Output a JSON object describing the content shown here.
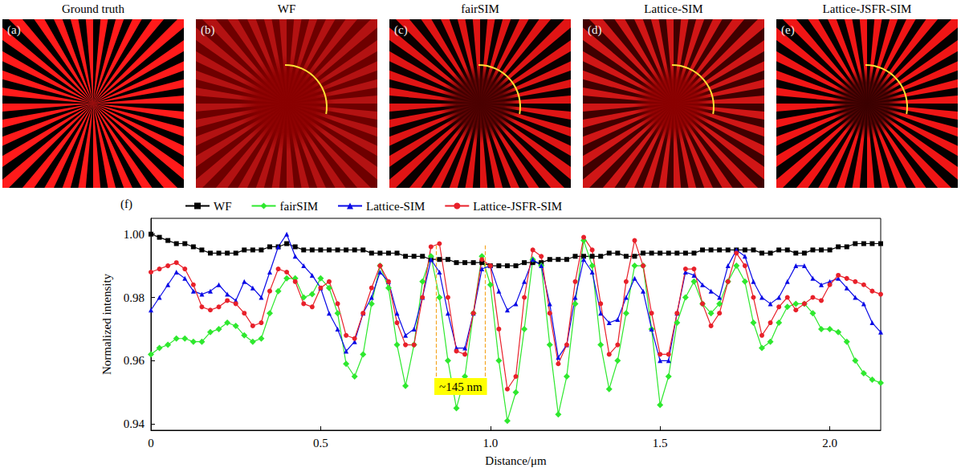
{
  "panels": [
    {
      "letter": "(a)",
      "title": "Ground truth"
    },
    {
      "letter": "(b)",
      "title": "WF"
    },
    {
      "letter": "(c)",
      "title": "fairSIM"
    },
    {
      "letter": "(d)",
      "title": "Lattice-SIM"
    },
    {
      "letter": "(e)",
      "title": "Lattice-JSFR-SIM"
    }
  ],
  "chart_data": {
    "type": "line",
    "panel_label": "(f)",
    "xlabel": "Distance/μm",
    "ylabel": "Normalized intensity",
    "xlim": [
      0,
      2.15
    ],
    "ylim": [
      0.938,
      1.005
    ],
    "xticks": [
      0,
      0.5,
      {
        "value": 1,
        "label": "1.0"
      },
      1.5,
      {
        "value": 2,
        "label": "2.0"
      }
    ],
    "yticks": [
      0.94,
      0.96,
      0.98,
      {
        "value": 1,
        "label": "1.00"
      }
    ],
    "grid": false,
    "legend": "top",
    "annotations": [
      {
        "text": "~145 nm",
        "x": [
          0.84,
          0.985
        ],
        "y": [
          0.955,
          0.997
        ],
        "color": "#f5a623"
      }
    ],
    "x": [
      0,
      0.025,
      0.05,
      0.075,
      0.1,
      0.125,
      0.15,
      0.175,
      0.2,
      0.225,
      0.25,
      0.275,
      0.3,
      0.325,
      0.35,
      0.375,
      0.4,
      0.425,
      0.45,
      0.475,
      0.5,
      0.525,
      0.55,
      0.575,
      0.6,
      0.625,
      0.65,
      0.675,
      0.7,
      0.725,
      0.75,
      0.775,
      0.8,
      0.825,
      0.85,
      0.875,
      0.9,
      0.925,
      0.95,
      0.975,
      1.0,
      1.025,
      1.05,
      1.075,
      1.1,
      1.125,
      1.15,
      1.175,
      1.2,
      1.225,
      1.25,
      1.275,
      1.3,
      1.325,
      1.35,
      1.375,
      1.4,
      1.425,
      1.45,
      1.475,
      1.5,
      1.525,
      1.55,
      1.575,
      1.6,
      1.625,
      1.65,
      1.675,
      1.7,
      1.725,
      1.75,
      1.775,
      1.8,
      1.825,
      1.85,
      1.875,
      1.9,
      1.925,
      1.95,
      1.975,
      2.0,
      2.025,
      2.05,
      2.075,
      2.1,
      2.125,
      2.15
    ],
    "series": [
      {
        "name": "WF",
        "color": "#000000",
        "marker": "square",
        "values": [
          1.0,
          0.999,
          0.998,
          0.997,
          0.997,
          0.996,
          0.995,
          0.994,
          0.994,
          0.994,
          0.994,
          0.995,
          0.995,
          0.995,
          0.996,
          0.996,
          0.997,
          0.996,
          0.995,
          0.995,
          0.995,
          0.995,
          0.995,
          0.995,
          0.995,
          0.995,
          0.994,
          0.994,
          0.994,
          0.994,
          0.993,
          0.993,
          0.993,
          0.992,
          0.992,
          0.992,
          0.991,
          0.991,
          0.991,
          0.991,
          0.99,
          0.99,
          0.99,
          0.99,
          0.991,
          0.991,
          0.991,
          0.992,
          0.992,
          0.992,
          0.993,
          0.993,
          0.993,
          0.993,
          0.994,
          0.994,
          0.993,
          0.993,
          0.994,
          0.994,
          0.994,
          0.994,
          0.994,
          0.994,
          0.994,
          0.995,
          0.995,
          0.995,
          0.995,
          0.995,
          0.995,
          0.995,
          0.994,
          0.994,
          0.995,
          0.995,
          0.994,
          0.994,
          0.995,
          0.995,
          0.995,
          0.996,
          0.996,
          0.997,
          0.997,
          0.997,
          0.997
        ]
      },
      {
        "name": "fairSIM",
        "color": "#2ee82e",
        "marker": "diamond",
        "values": [
          0.962,
          0.964,
          0.965,
          0.967,
          0.967,
          0.966,
          0.966,
          0.969,
          0.97,
          0.972,
          0.971,
          0.968,
          0.966,
          0.967,
          0.975,
          0.982,
          0.986,
          0.986,
          0.98,
          0.981,
          0.986,
          0.983,
          0.975,
          0.959,
          0.955,
          0.962,
          0.978,
          0.99,
          0.983,
          0.965,
          0.952,
          0.965,
          0.985,
          0.993,
          0.98,
          0.96,
          0.945,
          0.955,
          0.975,
          0.993,
          0.984,
          0.96,
          0.941,
          0.95,
          0.97,
          0.992,
          0.99,
          0.965,
          0.943,
          0.955,
          0.978,
          0.998,
          0.99,
          0.965,
          0.951,
          0.96,
          0.975,
          0.99,
          0.99,
          0.97,
          0.946,
          0.955,
          0.972,
          0.98,
          0.985,
          0.978,
          0.975,
          0.978,
          0.985,
          0.99,
          0.985,
          0.972,
          0.964,
          0.966,
          0.972,
          0.977,
          0.978,
          0.978,
          0.975,
          0.97,
          0.97,
          0.969,
          0.966,
          0.96,
          0.956,
          0.954,
          0.953
        ]
      },
      {
        "name": "Lattice-SIM",
        "color": "#0a0ae6",
        "marker": "triangle",
        "values": [
          0.976,
          0.98,
          0.984,
          0.988,
          0.986,
          0.982,
          0.981,
          0.982,
          0.984,
          0.981,
          0.979,
          0.985,
          0.983,
          0.98,
          0.988,
          0.996,
          1.0,
          0.993,
          0.99,
          0.987,
          0.983,
          0.975,
          0.97,
          0.963,
          0.966,
          0.975,
          0.98,
          0.988,
          0.985,
          0.975,
          0.968,
          0.97,
          0.98,
          0.992,
          0.988,
          0.975,
          0.964,
          0.964,
          0.975,
          0.989,
          0.99,
          0.982,
          0.976,
          0.978,
          0.985,
          0.992,
          0.99,
          0.978,
          0.961,
          0.965,
          0.98,
          0.992,
          0.988,
          0.975,
          0.972,
          0.973,
          0.98,
          0.986,
          0.982,
          0.97,
          0.96,
          0.96,
          0.975,
          0.988,
          0.987,
          0.984,
          0.982,
          0.98,
          0.99,
          0.995,
          0.993,
          0.985,
          0.98,
          0.978,
          0.98,
          0.985,
          0.99,
          0.99,
          0.986,
          0.984,
          0.985,
          0.986,
          0.983,
          0.98,
          0.978,
          0.972,
          0.969
        ]
      },
      {
        "name": "Lattice-JSFR-SIM",
        "color": "#e8202a",
        "marker": "circle",
        "values": [
          0.988,
          0.989,
          0.99,
          0.991,
          0.989,
          0.984,
          0.977,
          0.976,
          0.977,
          0.979,
          0.978,
          0.975,
          0.971,
          0.972,
          0.982,
          0.989,
          0.988,
          0.985,
          0.978,
          0.977,
          0.983,
          0.985,
          0.978,
          0.968,
          0.967,
          0.975,
          0.983,
          0.99,
          0.985,
          0.972,
          0.965,
          0.965,
          0.98,
          0.996,
          0.997,
          0.98,
          0.963,
          0.962,
          0.975,
          0.992,
          0.99,
          0.97,
          0.951,
          0.955,
          0.98,
          0.995,
          0.993,
          0.975,
          0.959,
          0.965,
          0.985,
          0.999,
          0.995,
          0.978,
          0.962,
          0.965,
          0.985,
          0.998,
          0.99,
          0.975,
          0.962,
          0.962,
          0.975,
          0.989,
          0.989,
          0.978,
          0.971,
          0.975,
          0.985,
          0.994,
          0.99,
          0.98,
          0.968,
          0.972,
          0.977,
          0.98,
          0.976,
          0.978,
          0.98,
          0.979,
          0.984,
          0.987,
          0.986,
          0.985,
          0.984,
          0.982,
          0.981
        ]
      }
    ]
  }
}
